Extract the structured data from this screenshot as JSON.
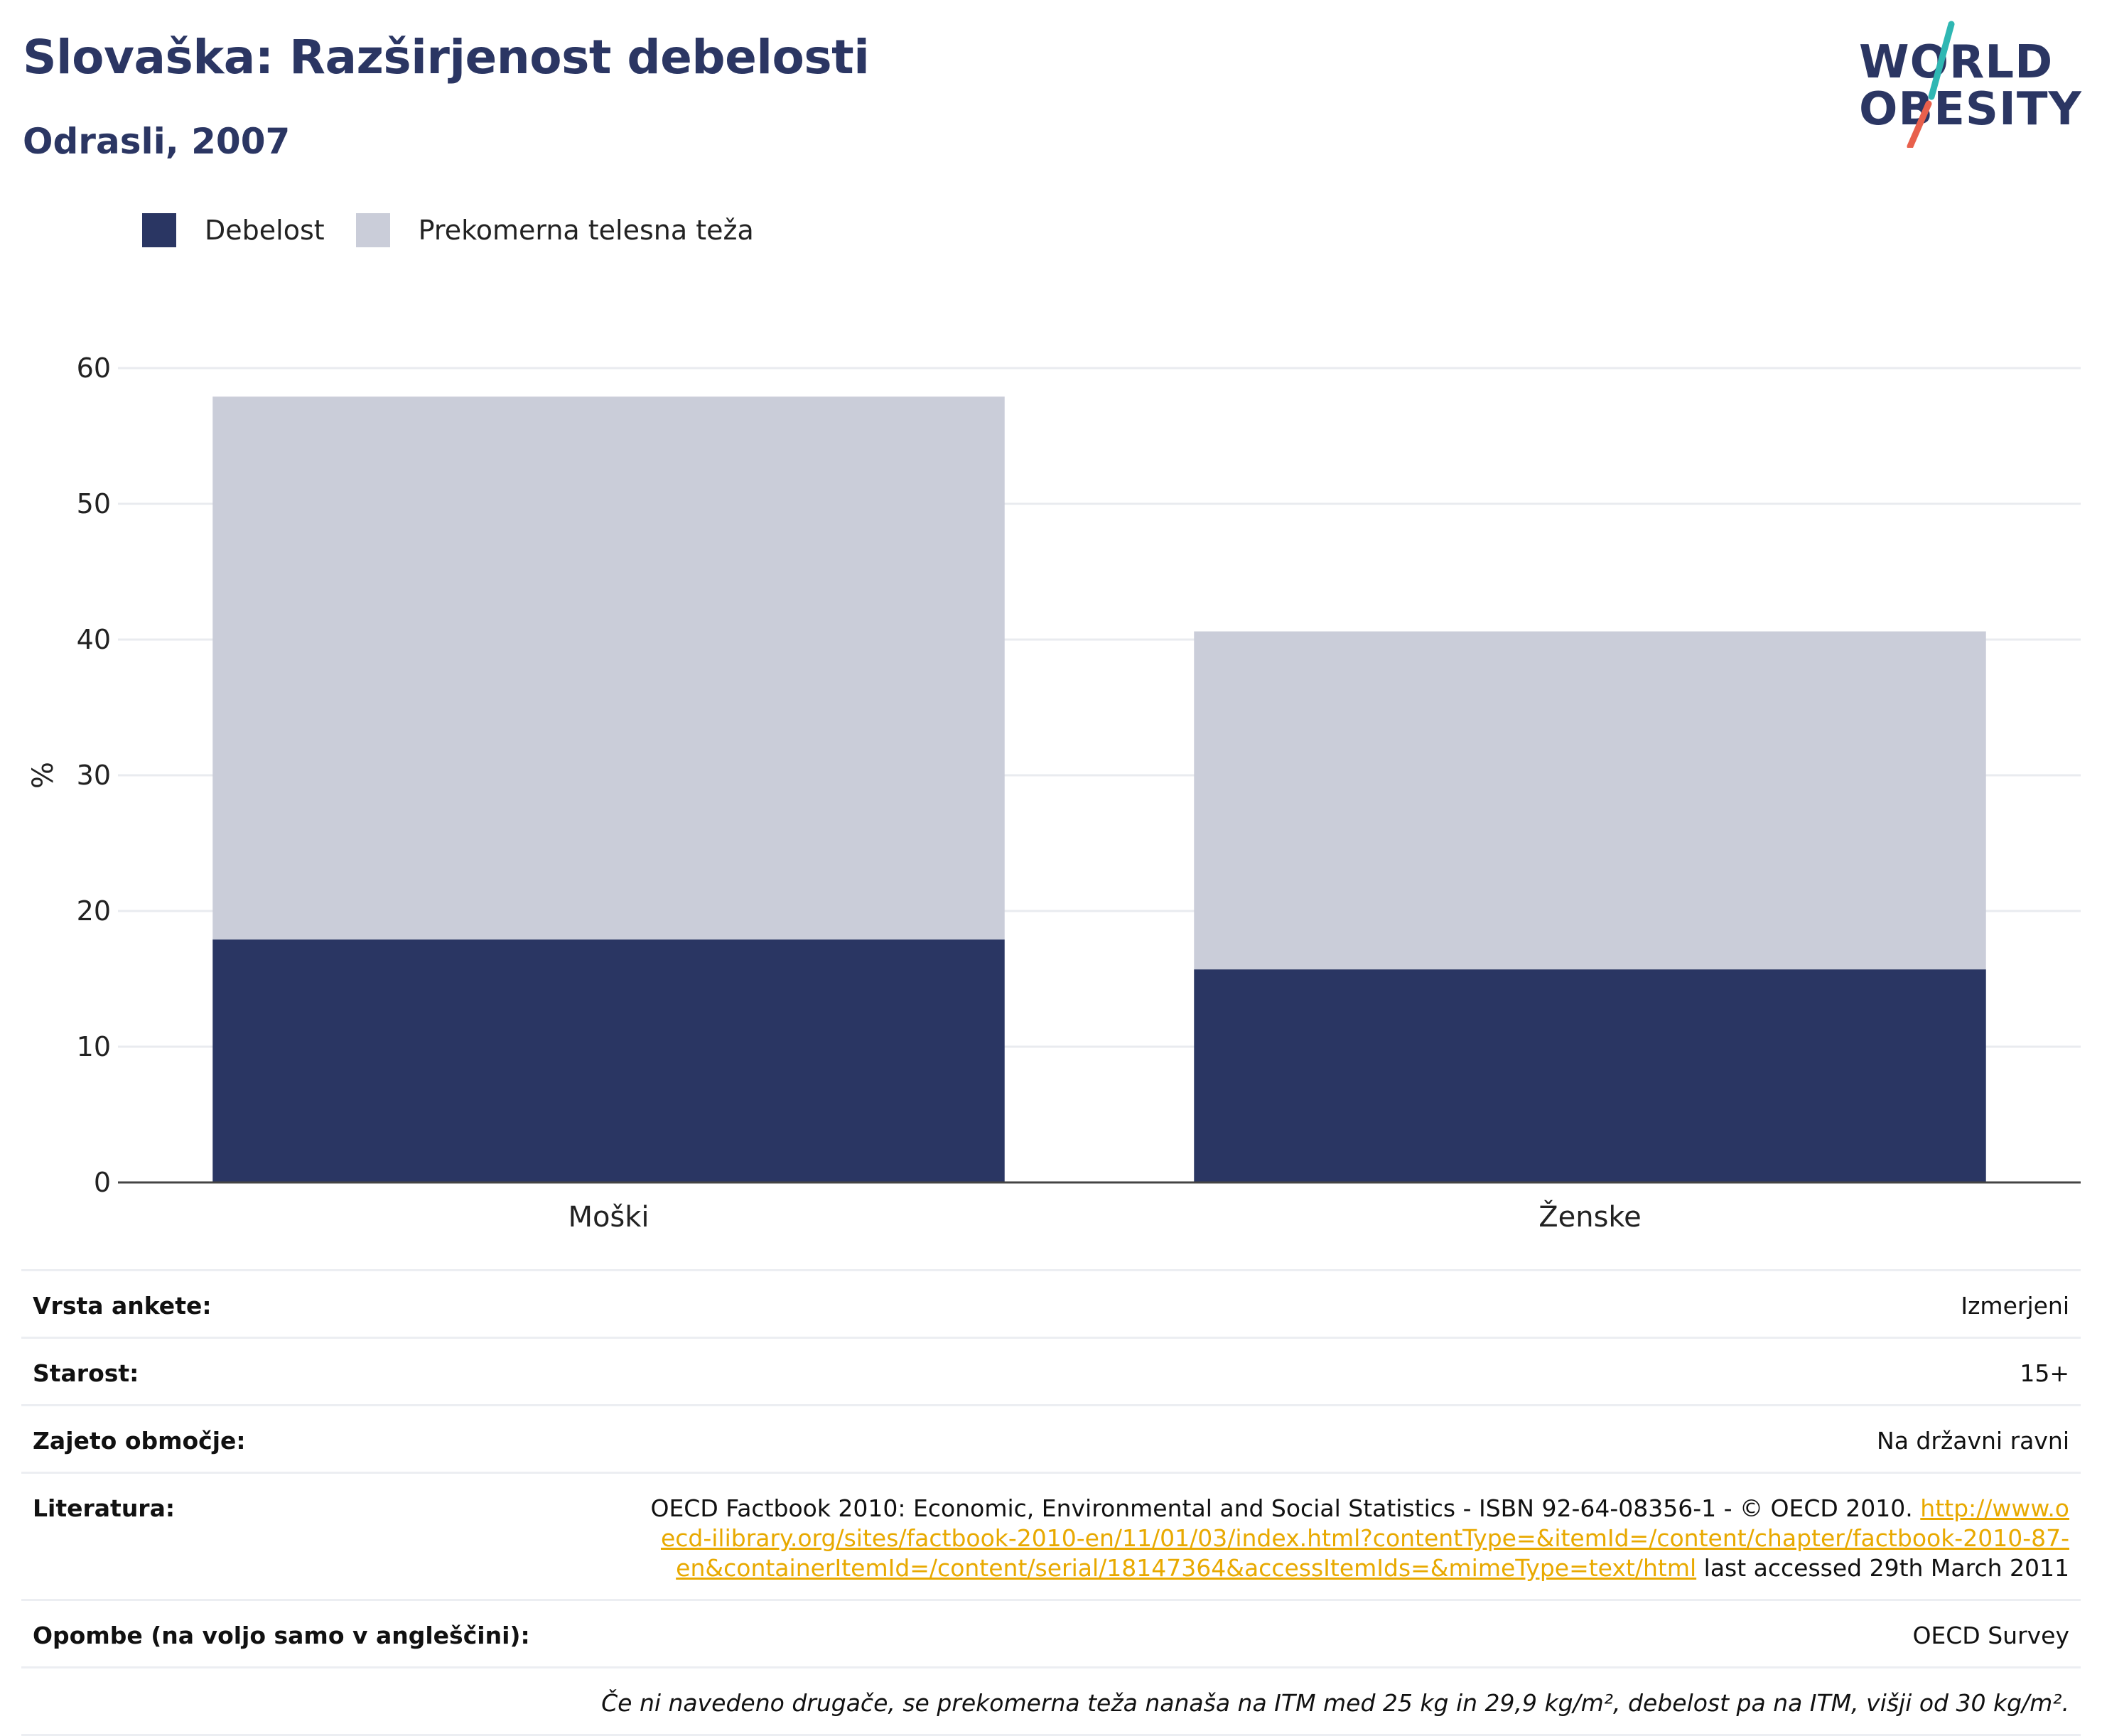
{
  "title": "Slovaška: Razširjenost debelosti",
  "subtitle": "Odrasli, 2007",
  "logo": {
    "line1": "WORLD",
    "line2": "OBESITY"
  },
  "legend": [
    {
      "label": "Debelost",
      "color": "#2a3663"
    },
    {
      "label": "Prekomerna telesna teža",
      "color": "#cacdd9"
    }
  ],
  "chart_data": {
    "type": "bar",
    "stacked": true,
    "categories": [
      "Moški",
      "Ženske"
    ],
    "series": [
      {
        "name": "Debelost",
        "color": "#2a3663",
        "values": [
          17.9,
          15.7
        ]
      },
      {
        "name": "Prekomerna telesna teža",
        "color": "#cacdd9",
        "values": [
          40.0,
          24.9
        ]
      }
    ],
    "ylabel": "%",
    "ylim": [
      0,
      60
    ],
    "yticks": [
      0,
      10,
      20,
      30,
      40,
      50,
      60
    ],
    "grid": true,
    "legend_position": "top-left"
  },
  "meta": {
    "survey_type": {
      "label": "Vrsta ankete:",
      "value": "Izmerjeni"
    },
    "age": {
      "label": "Starost:",
      "value": "15+"
    },
    "coverage": {
      "label": "Zajeto območje:",
      "value": "Na državni ravni"
    },
    "references": {
      "label": "Literatura:",
      "text": "OECD Factbook 2010: Economic, Environmental and Social Statistics - ISBN 92-64-08356-1 - © OECD 2010. ",
      "link": "http://www.oecd-ilibrary.org/sites/factbook-2010-en/11/01/03/index.html?contentType=&itemId=/content/chapter/factbook-2010-87-en&containerItemId=/content/serial/18147364&accessItemIds=&mimeType=text/html",
      "suffix": " last accessed 29th March 2011"
    },
    "notes": {
      "label": "Opombe (na voljo samo v angleščini):",
      "value": "OECD Survey"
    },
    "footnote": "Če ni navedeno drugače, se prekomerna teža nanaša na ITM med 25 kg in 29,9 kg/m², debelost pa na ITM, višji od 30 kg/m²."
  }
}
